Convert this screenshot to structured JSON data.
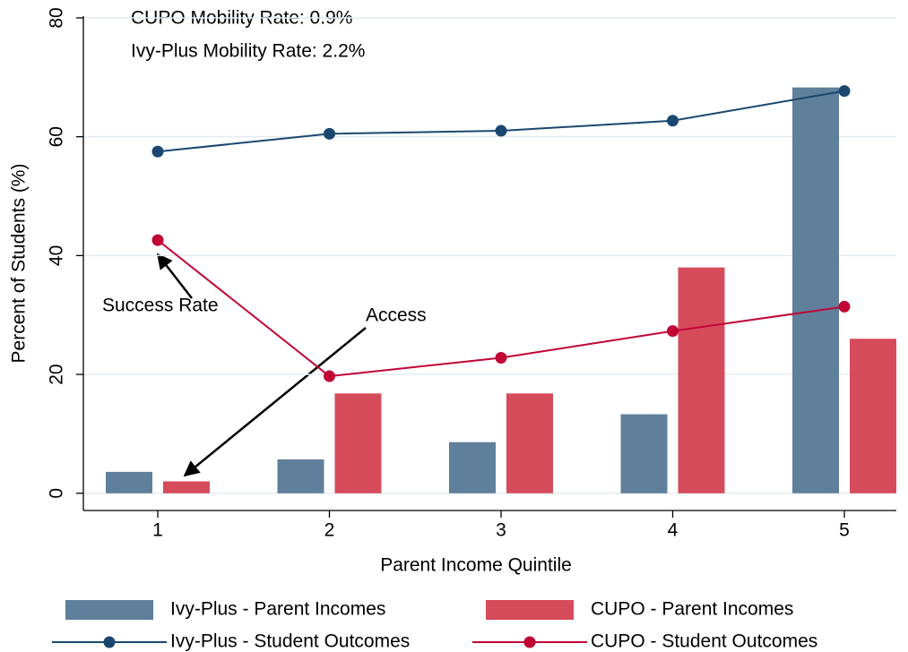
{
  "chart_data": {
    "type": "combo",
    "xlabel": "Parent Income Quintile",
    "ylabel": "Percent of Students (%)",
    "categories": [
      "1",
      "2",
      "3",
      "4",
      "5"
    ],
    "series": [
      {
        "name": "Ivy-Plus - Parent Incomes",
        "kind": "bar",
        "color": "#5f7f9b",
        "values": [
          3.6,
          5.7,
          8.6,
          13.3,
          68.3
        ]
      },
      {
        "name": "CUPO - Parent Incomes",
        "kind": "bar",
        "color": "#d64b5a",
        "values": [
          2.0,
          16.8,
          16.8,
          38.0,
          26.0
        ]
      },
      {
        "name": "Ivy-Plus - Student Outcomes",
        "kind": "line",
        "color": "#1a476f",
        "values": [
          57.5,
          60.5,
          61.0,
          62.7,
          67.7
        ]
      },
      {
        "name": "CUPO - Student Outcomes",
        "kind": "line",
        "color": "#c10534",
        "values": [
          42.6,
          19.7,
          22.8,
          27.3,
          31.4
        ]
      }
    ],
    "ylim": [
      -2.9,
      80.3
    ],
    "yticks": [
      0,
      20,
      40,
      60,
      80
    ],
    "grid": true,
    "annotations": [
      "CUPO Mobility Rate:  0.9%",
      "Ivy-Plus Mobility Rate:   2.2%",
      "Success Rate",
      "Access"
    ]
  }
}
